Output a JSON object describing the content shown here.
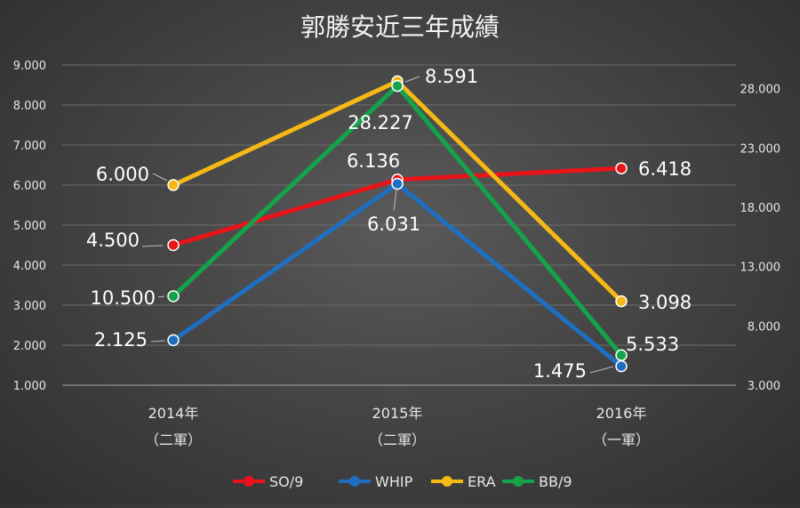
{
  "chart_data": {
    "type": "line",
    "title": "郭勝安近三年成績",
    "categories": [
      {
        "year": "2014年",
        "league": "（二軍）"
      },
      {
        "year": "2015年",
        "league": "（二軍）"
      },
      {
        "year": "2016年",
        "league": "（一軍）"
      }
    ],
    "y_left": {
      "min": 1,
      "max": 9,
      "step": 1,
      "ticks": [
        "1.000",
        "2.000",
        "3.000",
        "4.000",
        "5.000",
        "6.000",
        "7.000",
        "8.000",
        "9.000"
      ]
    },
    "y_right": {
      "min": 3,
      "max": 30,
      "ticks_values": [
        3,
        8,
        13,
        18,
        23,
        28
      ],
      "ticks": [
        "3.000",
        "8.000",
        "13.000",
        "18.000",
        "23.000",
        "28.000"
      ]
    },
    "series": [
      {
        "name": "SO/9",
        "axis": "left",
        "color": "#e8141a",
        "values": [
          4.5,
          6.136,
          6.418
        ],
        "labels": [
          "4.500",
          "6.136",
          "6.418"
        ]
      },
      {
        "name": "WHIP",
        "axis": "left",
        "color": "#1f6fc1",
        "values": [
          2.125,
          6.031,
          1.475
        ],
        "labels": [
          "2.125",
          "6.031",
          "1.475"
        ]
      },
      {
        "name": "ERA",
        "axis": "left",
        "color": "#f5b814",
        "values": [
          6.0,
          8.591,
          3.098
        ],
        "labels": [
          "6.000",
          "8.591",
          "3.098"
        ]
      },
      {
        "name": "BB/9",
        "axis": "right",
        "color": "#14a34a",
        "values": [
          10.5,
          28.227,
          5.533
        ],
        "labels": [
          "10.500",
          "28.227",
          "5.533"
        ]
      }
    ],
    "legend_position": "bottom",
    "grid": true
  }
}
